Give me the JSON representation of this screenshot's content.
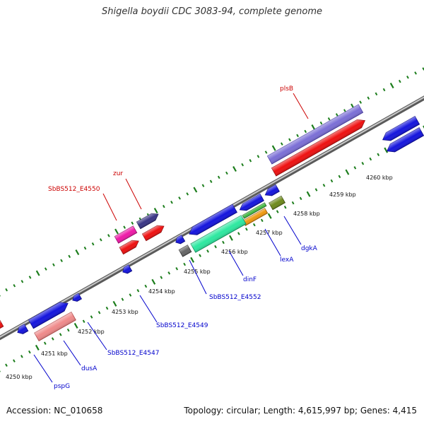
{
  "title": "Shigella boydii CDC 3083-94, complete genome",
  "footer": {
    "accession": "Accession: NC_010658",
    "summary": "Topology: circular; Length: 4,615,997 bp; Genes: 4,415"
  },
  "colors": {
    "backbone": "#8c8c8c",
    "tick": "#1c7d1c",
    "label_top": "#cc0000",
    "label_bottom": "#0000cc",
    "ruler_text": "#111111"
  },
  "ruler": [
    {
      "label": "4250 kbp"
    },
    {
      "label": "4251 kbp"
    },
    {
      "label": "4252 kbp"
    },
    {
      "label": "4253 kbp"
    },
    {
      "label": "4254 kbp"
    },
    {
      "label": "4255 kbp"
    },
    {
      "label": "4256 kbp"
    },
    {
      "label": "4257 kbp"
    },
    {
      "label": "4258 kbp"
    },
    {
      "label": "4259 kbp"
    },
    {
      "label": "4260 kbp"
    }
  ],
  "top_labels": [
    {
      "text": "plsB"
    },
    {
      "text": "zur"
    },
    {
      "text": "SbBS512_E4550"
    }
  ],
  "bottom_labels": [
    {
      "text": "dgkA"
    },
    {
      "text": "lexA"
    },
    {
      "text": "dinF"
    },
    {
      "text": "SbBS512_E4552"
    },
    {
      "text": "SbBS512_E4549"
    },
    {
      "text": "SbBS512_E4547"
    },
    {
      "text": "dusA"
    },
    {
      "text": "pspG"
    }
  ]
}
